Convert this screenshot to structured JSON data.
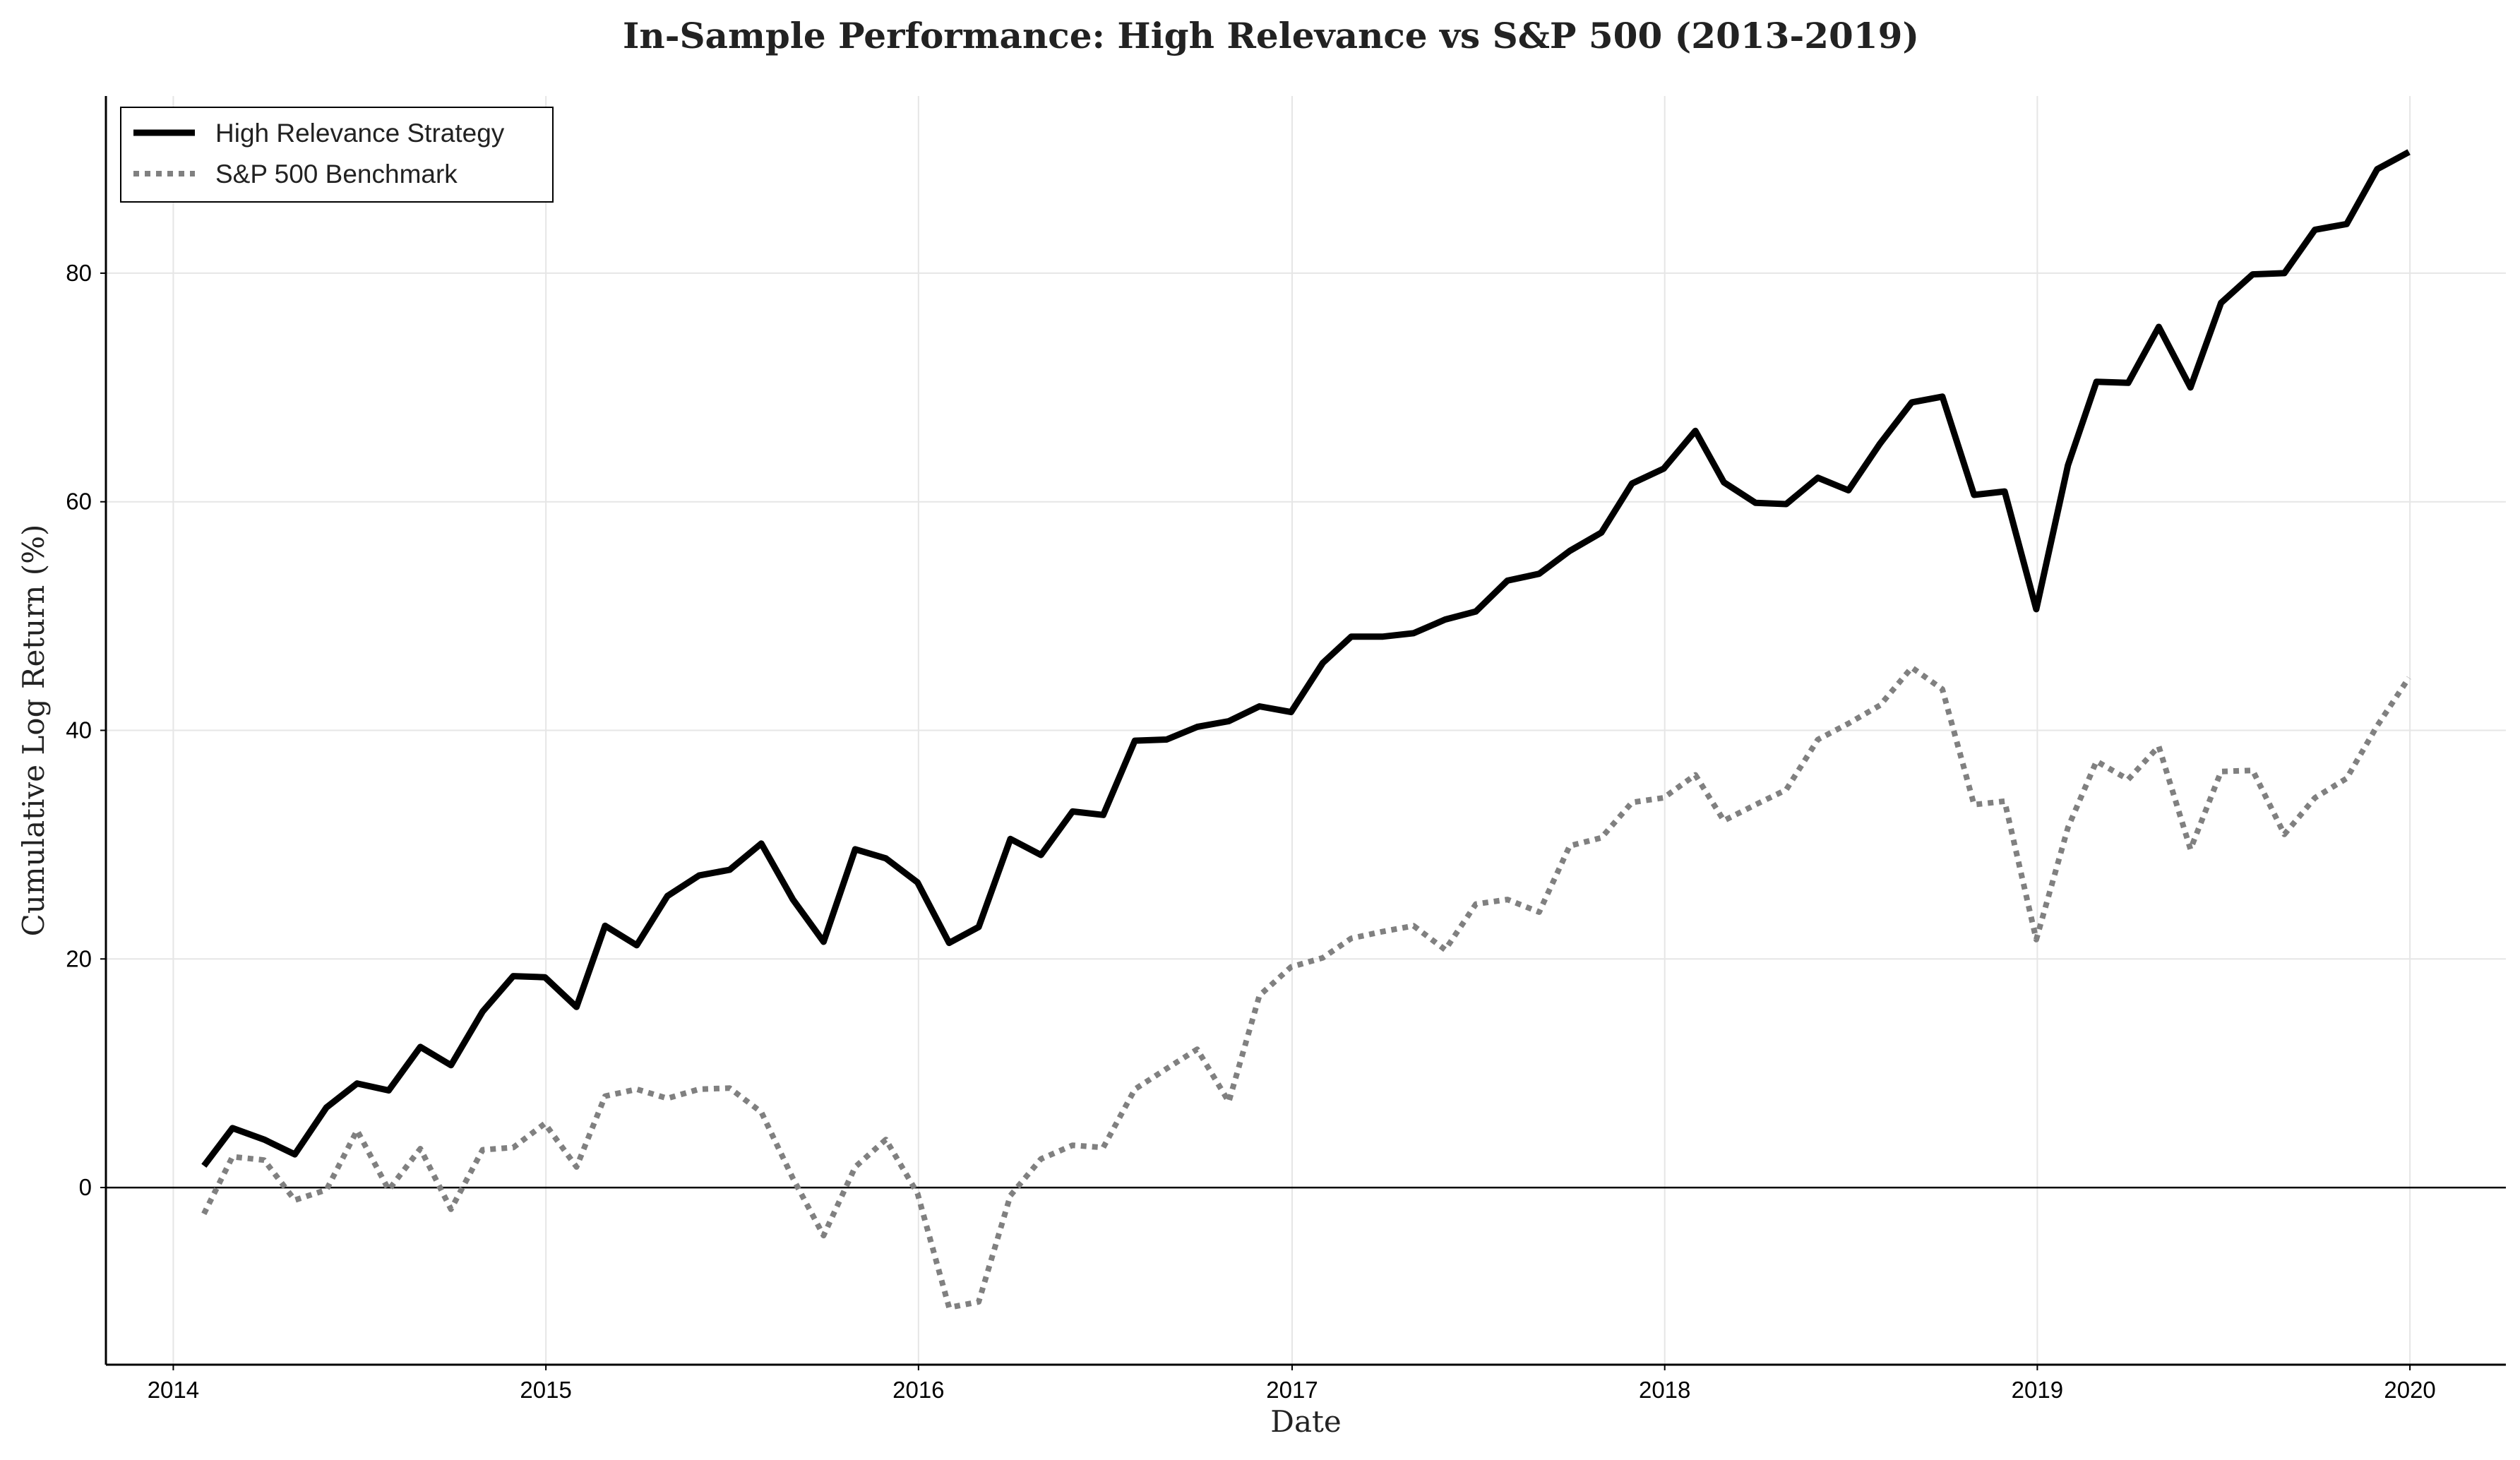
{
  "chart_data": {
    "type": "line",
    "title": "In-Sample Performance: High Relevance vs S&P 500 (2013-2019)",
    "xlabel": "Date",
    "ylabel": "Cumulative Log Return (%)",
    "xlim": [
      "2013-10-27",
      "2020-04-04"
    ],
    "ylim": [
      -15.5,
      95.5
    ],
    "xticks": [
      "2014",
      "2015",
      "2016",
      "2017",
      "2018",
      "2019",
      "2020"
    ],
    "yticks": [
      0,
      20,
      40,
      60,
      80
    ],
    "grid": true,
    "zero_line": true,
    "legend_position": "top-left",
    "x": [
      "2014-01-31",
      "2014-02-28",
      "2014-03-31",
      "2014-04-30",
      "2014-05-31",
      "2014-06-30",
      "2014-07-31",
      "2014-08-31",
      "2014-09-30",
      "2014-10-31",
      "2014-11-30",
      "2014-12-31",
      "2015-01-31",
      "2015-02-28",
      "2015-03-31",
      "2015-04-30",
      "2015-05-31",
      "2015-06-30",
      "2015-07-31",
      "2015-08-31",
      "2015-09-30",
      "2015-10-31",
      "2015-11-30",
      "2015-12-31",
      "2016-01-31",
      "2016-02-29",
      "2016-03-31",
      "2016-04-30",
      "2016-05-31",
      "2016-06-30",
      "2016-07-31",
      "2016-08-31",
      "2016-09-30",
      "2016-10-31",
      "2016-11-30",
      "2016-12-31",
      "2017-01-31",
      "2017-02-28",
      "2017-03-31",
      "2017-04-30",
      "2017-05-31",
      "2017-06-30",
      "2017-07-31",
      "2017-08-31",
      "2017-09-30",
      "2017-10-31",
      "2017-11-30",
      "2017-12-31",
      "2018-01-31",
      "2018-02-28",
      "2018-03-31",
      "2018-04-30",
      "2018-05-31",
      "2018-06-30",
      "2018-07-31",
      "2018-08-31",
      "2018-09-30",
      "2018-10-31",
      "2018-11-30",
      "2018-12-31",
      "2019-01-31",
      "2019-02-28",
      "2019-03-31",
      "2019-04-30",
      "2019-05-31",
      "2019-06-30",
      "2019-07-31",
      "2019-08-31",
      "2019-09-30",
      "2019-10-31",
      "2019-11-30",
      "2019-12-31"
    ],
    "series": [
      {
        "name": "High Relevance Strategy",
        "color": "#000000",
        "style": "solid",
        "values": [
          1.9,
          5.2,
          4.2,
          2.9,
          7.0,
          9.1,
          8.5,
          12.3,
          10.7,
          15.4,
          18.5,
          18.4,
          15.8,
          22.9,
          21.2,
          25.5,
          27.3,
          27.8,
          30.1,
          25.2,
          21.5,
          29.6,
          28.8,
          26.7,
          21.4,
          22.8,
          30.5,
          29.1,
          32.9,
          32.6,
          39.1,
          39.2,
          40.3,
          40.8,
          42.1,
          41.6,
          45.9,
          48.2,
          48.2,
          48.5,
          49.7,
          50.4,
          53.1,
          53.7,
          55.7,
          57.3,
          61.6,
          62.9,
          66.2,
          61.7,
          59.9,
          59.8,
          62.1,
          61.0,
          65.1,
          68.7,
          69.2,
          60.6,
          60.9,
          50.6,
          63.2,
          70.5,
          70.4,
          75.3,
          70.0,
          77.4,
          79.9,
          80.0,
          83.8,
          84.3,
          89.1,
          90.6
        ]
      },
      {
        "name": "S&P 500 Benchmark",
        "color": "#808080",
        "style": "dotted",
        "values": [
          -2.3,
          2.7,
          2.4,
          -1.1,
          -0.2,
          5.0,
          -0.2,
          3.4,
          -1.9,
          3.3,
          3.5,
          5.6,
          1.8,
          8.0,
          8.6,
          7.8,
          8.6,
          8.7,
          6.6,
          0.8,
          -4.2,
          1.8,
          4.2,
          -0.5,
          -10.5,
          -10.0,
          -0.7,
          2.5,
          3.7,
          3.5,
          8.6,
          10.4,
          12.1,
          7.5,
          16.8,
          19.3,
          20.1,
          21.8,
          22.4,
          22.9,
          20.8,
          24.8,
          25.2,
          24.1,
          29.9,
          30.6,
          33.7,
          34.1,
          36.1,
          32.1,
          33.5,
          34.8,
          39.2,
          40.6,
          42.2,
          45.5,
          43.6,
          33.5,
          33.8,
          21.7,
          31.5,
          37.3,
          35.7,
          38.6,
          29.6,
          36.4,
          36.5,
          30.9,
          34.1,
          35.8,
          40.4,
          44.6
        ]
      }
    ]
  }
}
